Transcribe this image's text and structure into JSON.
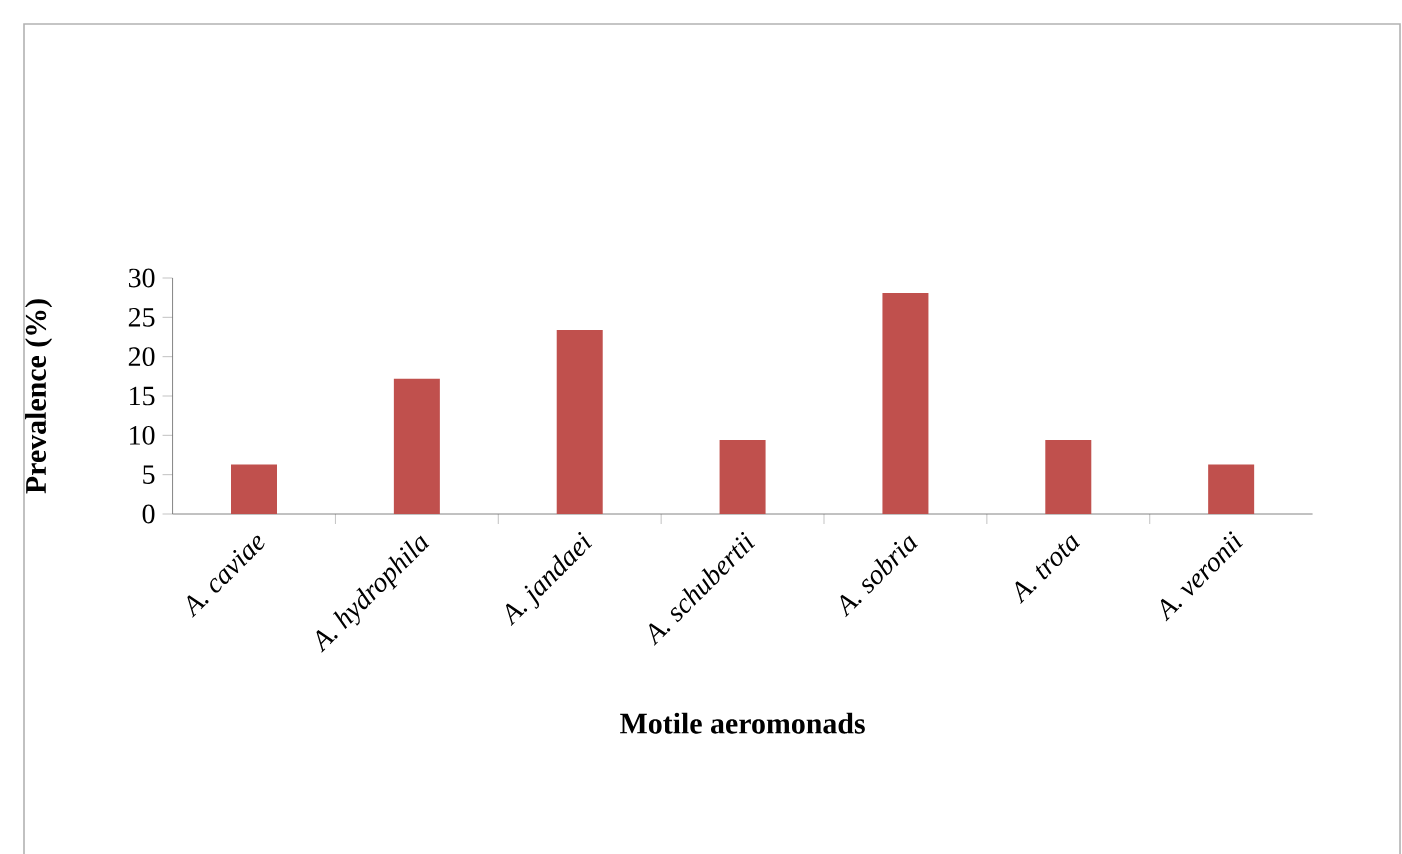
{
  "chart_data": {
    "type": "bar",
    "xlabel": "Motile aeromonads",
    "ylabel": "Prevalence (%)",
    "categories": [
      "A. caviae",
      "A. hydrophila",
      "A. jandaei",
      "A. schubertii",
      "A. sobria",
      "A. trota",
      "A. veronii"
    ],
    "values": [
      6.3,
      17.2,
      23.4,
      9.4,
      28.1,
      9.4,
      6.3
    ],
    "color": "#c0504d",
    "ylim": [
      0,
      30
    ],
    "yticks": [
      0,
      5,
      10,
      15,
      20,
      25,
      30
    ],
    "grid": false
  }
}
